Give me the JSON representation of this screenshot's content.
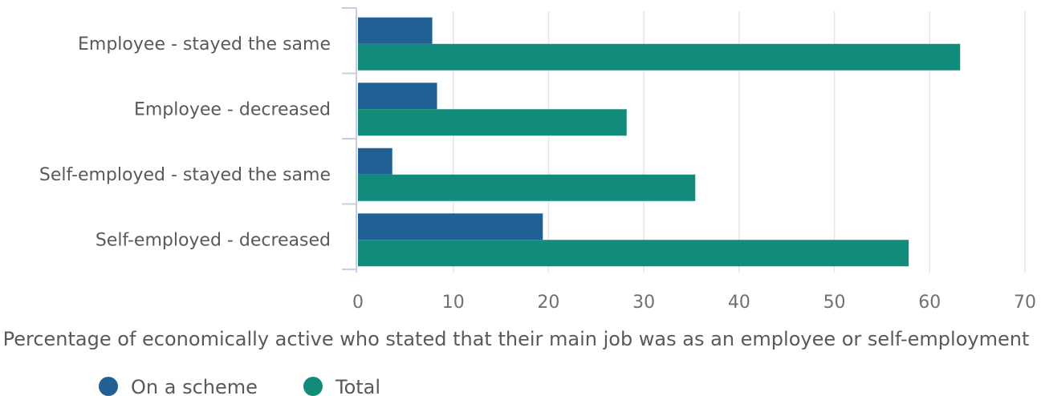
{
  "chart_data": {
    "type": "bar",
    "orientation": "horizontal",
    "categories": [
      "Employee - stayed the same",
      "Employee - decreased",
      "Self-employed - stayed the same",
      "Self-employed - decreased"
    ],
    "series": [
      {
        "name": "On a scheme",
        "color": "#206095",
        "values": [
          7.8,
          8.3,
          3.6,
          19.4
        ]
      },
      {
        "name": "Total",
        "color": "#118c7b",
        "values": [
          63.2,
          28.2,
          35.4,
          57.8
        ]
      }
    ],
    "xlabel": "Percentage of economically active who stated that their main job was as an employee or self-employment",
    "xlim": [
      0,
      70
    ],
    "xticks": [
      0,
      10,
      20,
      30,
      40,
      50,
      60,
      70
    ],
    "grid": true,
    "legend_position": "bottom"
  }
}
